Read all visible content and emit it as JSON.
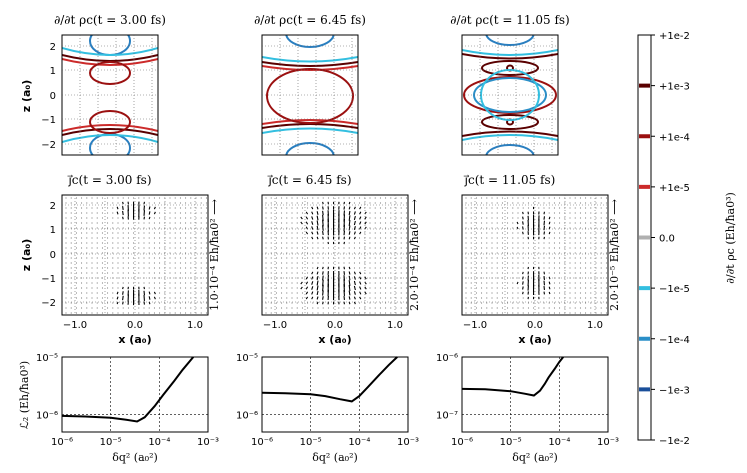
{
  "colorbar": {
    "labels": [
      "+1e-2",
      "+1e-3",
      "+1e-4",
      "+1e-5",
      "0.0",
      "−1e-5",
      "−1e-4",
      "−1e-3",
      "−1e-2"
    ],
    "colors": [
      "#ffffff",
      "#5a0000",
      "#9b1010",
      "#cc2a2a",
      "#b0b0b0",
      "#33bfe0",
      "#2a8fc8",
      "#1a4f9a",
      "#ffffff"
    ],
    "label": "∂/∂t ρc (Eh/ħa0³)"
  },
  "row1": {
    "titles": [
      "∂/∂t ρc(t = 3.00 fs)",
      "∂/∂t ρc(t = 6.45 fs)",
      "∂/∂t ρc(t = 11.05 fs)"
    ],
    "ylabel": "z (a₀)",
    "yticks": [
      "2",
      "1",
      "0",
      "−1",
      "−2"
    ]
  },
  "row2": {
    "titles": [
      "j⃗c(t = 3.00 fs)",
      "j⃗c(t = 6.45 fs)",
      "j⃗c(t = 11.05 fs)"
    ],
    "ylabel": "z (a₀)",
    "xlabel": "x (a₀)",
    "yticks": [
      "2",
      "1",
      "0",
      "−1",
      "−2"
    ],
    "xticks": [
      "−1.0",
      "0.0",
      "1.0"
    ],
    "scales": [
      "1.0·10⁻⁴ Eh/ħa0² ⟶",
      "2.0·10⁻⁴ Eh/ħa0² ⟶",
      "2.0·10⁻⁵ Eh/ħa0² ⟶"
    ]
  },
  "row3": {
    "ylabel": "ℒ₂ (Eh/ħa0³)",
    "xlabel": "δq² (a₀²)",
    "xticks": [
      "10⁻⁶",
      "10⁻⁵",
      "10⁻⁴",
      "10⁻³"
    ],
    "yticks": [
      [
        "10⁻⁵",
        "10⁻⁶"
      ],
      [
        "10⁻⁵",
        "10⁻⁶"
      ],
      [
        "10⁻⁶",
        "10⁻⁷"
      ]
    ]
  },
  "chart_data": [
    {
      "type": "line",
      "title": "",
      "xlabel": "δq² (a₀²)",
      "ylabel": "ℒ₂ (Eh/ħa0³)",
      "xscale": "log",
      "yscale": "log",
      "xlim": [
        1e-06,
        0.001
      ],
      "ylim": [
        5e-07,
        1e-05
      ],
      "series": [
        {
          "x": [
            1e-06,
            3e-06,
            1e-05,
            2e-05,
            3.5e-05,
            5e-05,
            8e-05,
            0.00012,
            0.0002,
            0.0003,
            0.0005
          ],
          "y": [
            9.5e-07,
            9.3e-07,
            8.8e-07,
            8.2e-07,
            7.6e-07,
            9e-07,
            1.4e-06,
            2.2e-06,
            3.8e-06,
            6e-06,
            1e-05
          ]
        }
      ]
    },
    {
      "type": "line",
      "title": "",
      "xlabel": "δq² (a₀²)",
      "ylabel": "",
      "xscale": "log",
      "yscale": "log",
      "xlim": [
        1e-06,
        0.001
      ],
      "ylim": [
        5e-07,
        1e-05
      ],
      "series": [
        {
          "x": [
            1e-06,
            3e-06,
            1e-05,
            2e-05,
            4e-05,
            7e-05,
            0.0001,
            0.00015,
            0.00025,
            0.0004,
            0.0006
          ],
          "y": [
            2.4e-06,
            2.35e-06,
            2.25e-06,
            2.1e-06,
            1.85e-06,
            1.7e-06,
            2.1e-06,
            3e-06,
            4.8e-06,
            7.2e-06,
            1e-05
          ]
        }
      ]
    },
    {
      "type": "line",
      "title": "",
      "xlabel": "δq² (a₀²)",
      "ylabel": "",
      "xscale": "log",
      "yscale": "log",
      "xlim": [
        1e-06,
        0.001
      ],
      "ylim": [
        5e-08,
        1e-06
      ],
      "series": [
        {
          "x": [
            1e-06,
            3e-06,
            1e-05,
            2e-05,
            3e-05,
            4e-05,
            5e-05,
            6e-05,
            8e-05,
            0.0001,
            0.00012
          ],
          "y": [
            2.8e-07,
            2.75e-07,
            2.55e-07,
            2.3e-07,
            2.15e-07,
            2.6e-07,
            3.4e-07,
            4.4e-07,
            6.2e-07,
            8.2e-07,
            1e-06
          ]
        }
      ]
    }
  ]
}
